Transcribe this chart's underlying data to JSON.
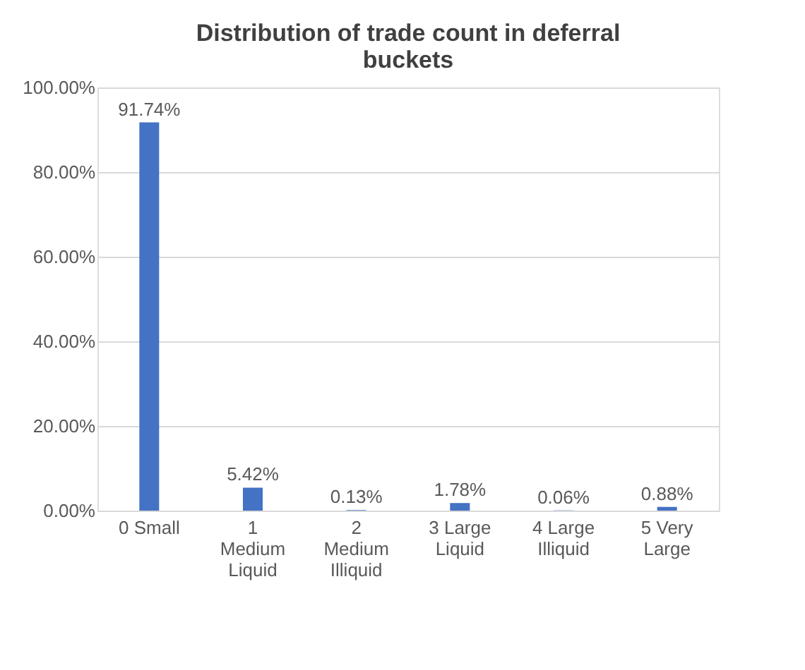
{
  "chart_data": {
    "type": "bar",
    "title": "Distribution of trade count in deferral buckets",
    "categories": [
      "0 Small",
      "1 Medium Liquid",
      "2 Medium Illiquid",
      "3 Large Liquid",
      "4 Large Illiquid",
      "5 Very Large"
    ],
    "values": [
      91.74,
      5.42,
      0.13,
      1.78,
      0.06,
      0.88
    ],
    "value_labels": [
      "91.74%",
      "5.42%",
      "0.13%",
      "1.78%",
      "0.06%",
      "0.88%"
    ],
    "color": "#4472c4",
    "ylim": [
      0,
      100
    ],
    "yticks": [
      {
        "value": 0,
        "label": "0.00%"
      },
      {
        "value": 20,
        "label": "20.00%"
      },
      {
        "value": 40,
        "label": "40.00%"
      },
      {
        "value": 60,
        "label": "60.00%"
      },
      {
        "value": 80,
        "label": "80.00%"
      },
      {
        "value": 100,
        "label": "100.00%"
      }
    ],
    "grid": "y"
  }
}
